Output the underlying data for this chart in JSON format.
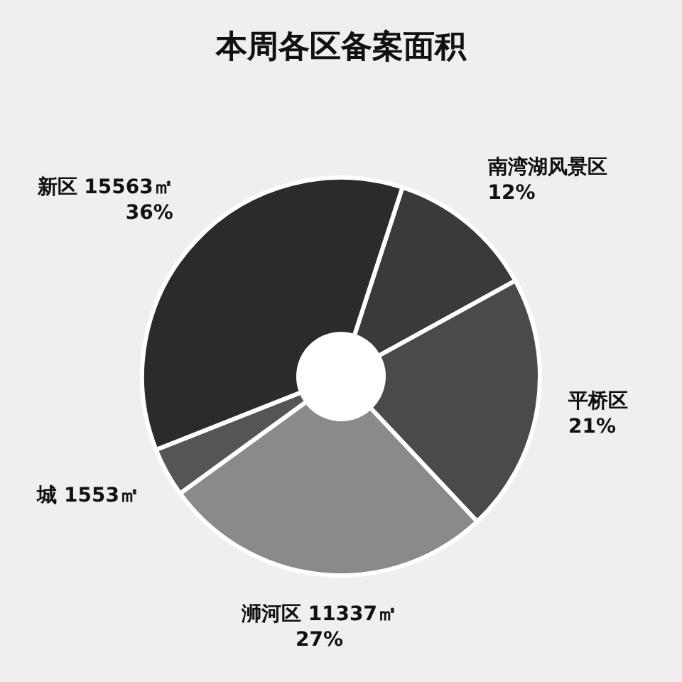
{
  "chart_data": {
    "type": "donut",
    "title": "本周各区备案面积",
    "categories": [
      "南湾湖风景区",
      "平桥区",
      "浉河区 11337㎡",
      "城 1553㎡",
      "新区 15563㎡"
    ],
    "values": [
      12,
      21,
      27,
      4,
      36
    ],
    "colors": [
      "#3a3a3a",
      "#4a4a4a",
      "#8a8a8a",
      "#555555",
      "#2b2b2b"
    ],
    "value_labels": [
      "12%",
      "21%",
      "27%",
      null,
      "36%"
    ]
  }
}
